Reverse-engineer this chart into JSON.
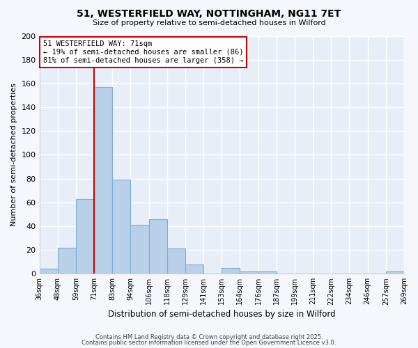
{
  "title": "51, WESTERFIELD WAY, NOTTINGHAM, NG11 7ET",
  "subtitle": "Size of property relative to semi-detached houses in Wilford",
  "xlabel": "Distribution of semi-detached houses by size in Wilford",
  "ylabel": "Number of semi-detached properties",
  "bins": [
    36,
    48,
    59,
    71,
    83,
    94,
    106,
    118,
    129,
    141,
    153,
    164,
    176,
    187,
    199,
    211,
    222,
    234,
    246,
    257,
    269
  ],
  "counts": [
    4,
    22,
    63,
    157,
    79,
    41,
    46,
    21,
    8,
    0,
    5,
    2,
    2,
    0,
    0,
    0,
    0,
    0,
    0,
    2
  ],
  "bar_color": "#b8d0e8",
  "bar_edge_color": "#7aaed6",
  "plot_bg_color": "#e8eef8",
  "figure_bg_color": "#f5f7fc",
  "grid_color": "#ffffff",
  "property_size_bin_index": 3,
  "annotation_line_color": "#cc0000",
  "annotation_text_line1": "51 WESTERFIELD WAY: 71sqm",
  "annotation_text_line2": "← 19% of semi-detached houses are smaller (86)",
  "annotation_text_line3": "81% of semi-detached houses are larger (358) →",
  "annotation_box_facecolor": "#ffffff",
  "annotation_box_edgecolor": "#cc0000",
  "ylim": [
    0,
    200
  ],
  "yticks": [
    0,
    20,
    40,
    60,
    80,
    100,
    120,
    140,
    160,
    180,
    200
  ],
  "tick_labels": [
    "36sqm",
    "48sqm",
    "59sqm",
    "71sqm",
    "83sqm",
    "94sqm",
    "106sqm",
    "118sqm",
    "129sqm",
    "141sqm",
    "153sqm",
    "164sqm",
    "176sqm",
    "187sqm",
    "199sqm",
    "211sqm",
    "222sqm",
    "234sqm",
    "246sqm",
    "257sqm",
    "269sqm"
  ],
  "footer1": "Contains HM Land Registry data © Crown copyright and database right 2025.",
  "footer2": "Contains public sector information licensed under the Open Government Licence v3.0."
}
